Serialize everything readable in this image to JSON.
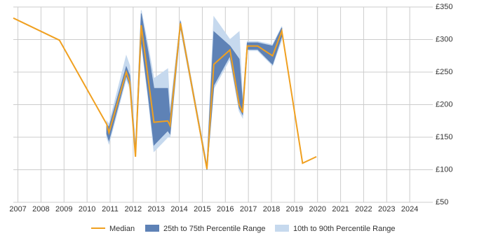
{
  "chart_data": {
    "type": "line",
    "x": [
      2006.8,
      2008.8,
      2010.85,
      2010.95,
      2011.7,
      2011.85,
      2012.1,
      2012.35,
      2012.65,
      2012.9,
      2013.5,
      2013.6,
      2014.05,
      2015.2,
      2015.5,
      2016.2,
      2016.6,
      2016.75,
      2016.95,
      2017.4,
      2018.05,
      2018.45,
      2019.35,
      2019.95
    ],
    "series": [
      {
        "name": "Median",
        "color": "#f0a020",
        "values": [
          333,
          299,
          170,
          157,
          250,
          235,
          120,
          322,
          240,
          173,
          175,
          168,
          325,
          101,
          262,
          284,
          200,
          188,
          290,
          290,
          275,
          313,
          110,
          120
        ]
      }
    ],
    "bands": [
      {
        "name": "10th to 90th Percentile Range",
        "color": "#c6d9ee",
        "lower": [
          null,
          null,
          150,
          140,
          240,
          225,
          120,
          295,
          210,
          128,
          150,
          150,
          318,
          100,
          225,
          270,
          190,
          180,
          283,
          283,
          260,
          300,
          null,
          null
        ],
        "upper": [
          null,
          null,
          175,
          170,
          275,
          260,
          135,
          345,
          290,
          240,
          255,
          190,
          330,
          108,
          335,
          300,
          312,
          205,
          297,
          297,
          292,
          320,
          null,
          null
        ]
      },
      {
        "name": "25th to 75th Percentile Range",
        "color": "#5e82b6",
        "lower": [
          null,
          null,
          155,
          145,
          245,
          230,
          125,
          300,
          215,
          138,
          160,
          155,
          320,
          100,
          230,
          275,
          195,
          185,
          285,
          285,
          262,
          305,
          null,
          null
        ],
        "upper": [
          null,
          null,
          170,
          165,
          258,
          245,
          130,
          340,
          280,
          225,
          225,
          180,
          328,
          105,
          312,
          290,
          270,
          200,
          295,
          295,
          290,
          318,
          null,
          null
        ]
      }
    ],
    "xlim": [
      2006.8,
      2025
    ],
    "xticks": [
      2007,
      2008,
      2009,
      2010,
      2011,
      2012,
      2013,
      2014,
      2015,
      2016,
      2017,
      2018,
      2019,
      2020,
      2021,
      2022,
      2023,
      2024
    ],
    "ylim": [
      50,
      350
    ],
    "yticks": [
      {
        "value": 50,
        "label": "£50"
      },
      {
        "value": 100,
        "label": "£100"
      },
      {
        "value": 150,
        "label": "£150"
      },
      {
        "value": 200,
        "label": "£200"
      },
      {
        "value": 250,
        "label": "£250"
      },
      {
        "value": 300,
        "label": "£300"
      },
      {
        "value": 350,
        "label": "£350"
      }
    ],
    "grid": true
  }
}
